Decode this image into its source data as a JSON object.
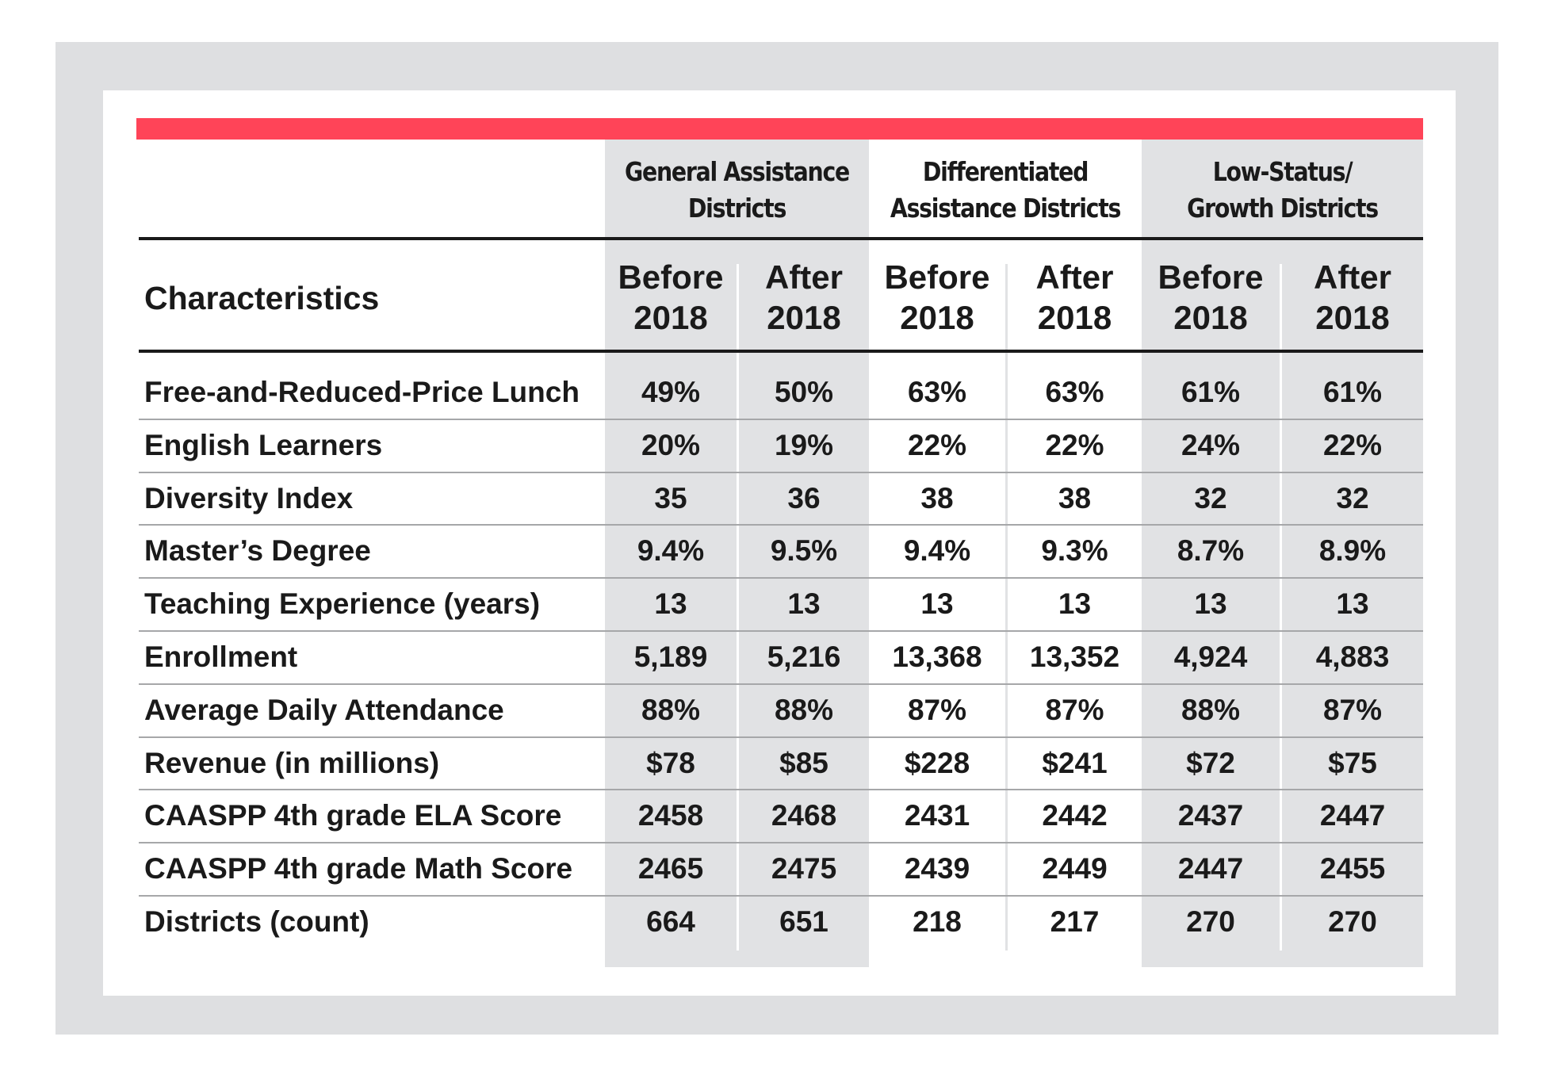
{
  "table": {
    "characteristics_header": "Characteristics",
    "groups": [
      {
        "line1": "General Assistance",
        "line2": "Districts"
      },
      {
        "line1": "Differentiated",
        "line2": "Assistance Districts"
      },
      {
        "line1": "Low-Status/",
        "line2": "Growth Districts"
      }
    ],
    "periods": [
      {
        "line1": "Before",
        "line2": "2018"
      },
      {
        "line1": "After",
        "line2": "2018"
      }
    ],
    "rows": [
      {
        "label": "Free-and-Reduced-Price Lunch",
        "values": [
          "49%",
          "50%",
          "63%",
          "63%",
          "61%",
          "61%"
        ]
      },
      {
        "label": "English Learners",
        "values": [
          "20%",
          "19%",
          "22%",
          "22%",
          "24%",
          "22%"
        ]
      },
      {
        "label": "Diversity Index",
        "values": [
          "35",
          "36",
          "38",
          "38",
          "32",
          "32"
        ]
      },
      {
        "label": "Master’s Degree",
        "values": [
          "9.4%",
          "9.5%",
          "9.4%",
          "9.3%",
          "8.7%",
          "8.9%"
        ]
      },
      {
        "label": "Teaching Experience (years)",
        "values": [
          "13",
          "13",
          "13",
          "13",
          "13",
          "13"
        ]
      },
      {
        "label": "Enrollment",
        "values": [
          "5,189",
          "5,216",
          "13,368",
          "13,352",
          "4,924",
          "4,883"
        ]
      },
      {
        "label": "Average Daily Attendance",
        "values": [
          "88%",
          "88%",
          "87%",
          "87%",
          "88%",
          "87%"
        ]
      },
      {
        "label": "Revenue (in millions)",
        "values": [
          "$78",
          "$85",
          "$228",
          "$241",
          "$72",
          "$75"
        ]
      },
      {
        "label": "CAASPP 4th grade ELA Score",
        "values": [
          "2458",
          "2468",
          "2431",
          "2442",
          "2437",
          "2447"
        ]
      },
      {
        "label": "CAASPP 4th grade Math Score",
        "values": [
          "2465",
          "2475",
          "2439",
          "2449",
          "2447",
          "2455"
        ]
      },
      {
        "label": "Districts (count)",
        "values": [
          "664",
          "651",
          "218",
          "217",
          "270",
          "270"
        ]
      }
    ]
  },
  "colors": {
    "accent_bar": "#ff4458",
    "column_shade": "#e1e2e4",
    "frame": "#dedfe1"
  }
}
